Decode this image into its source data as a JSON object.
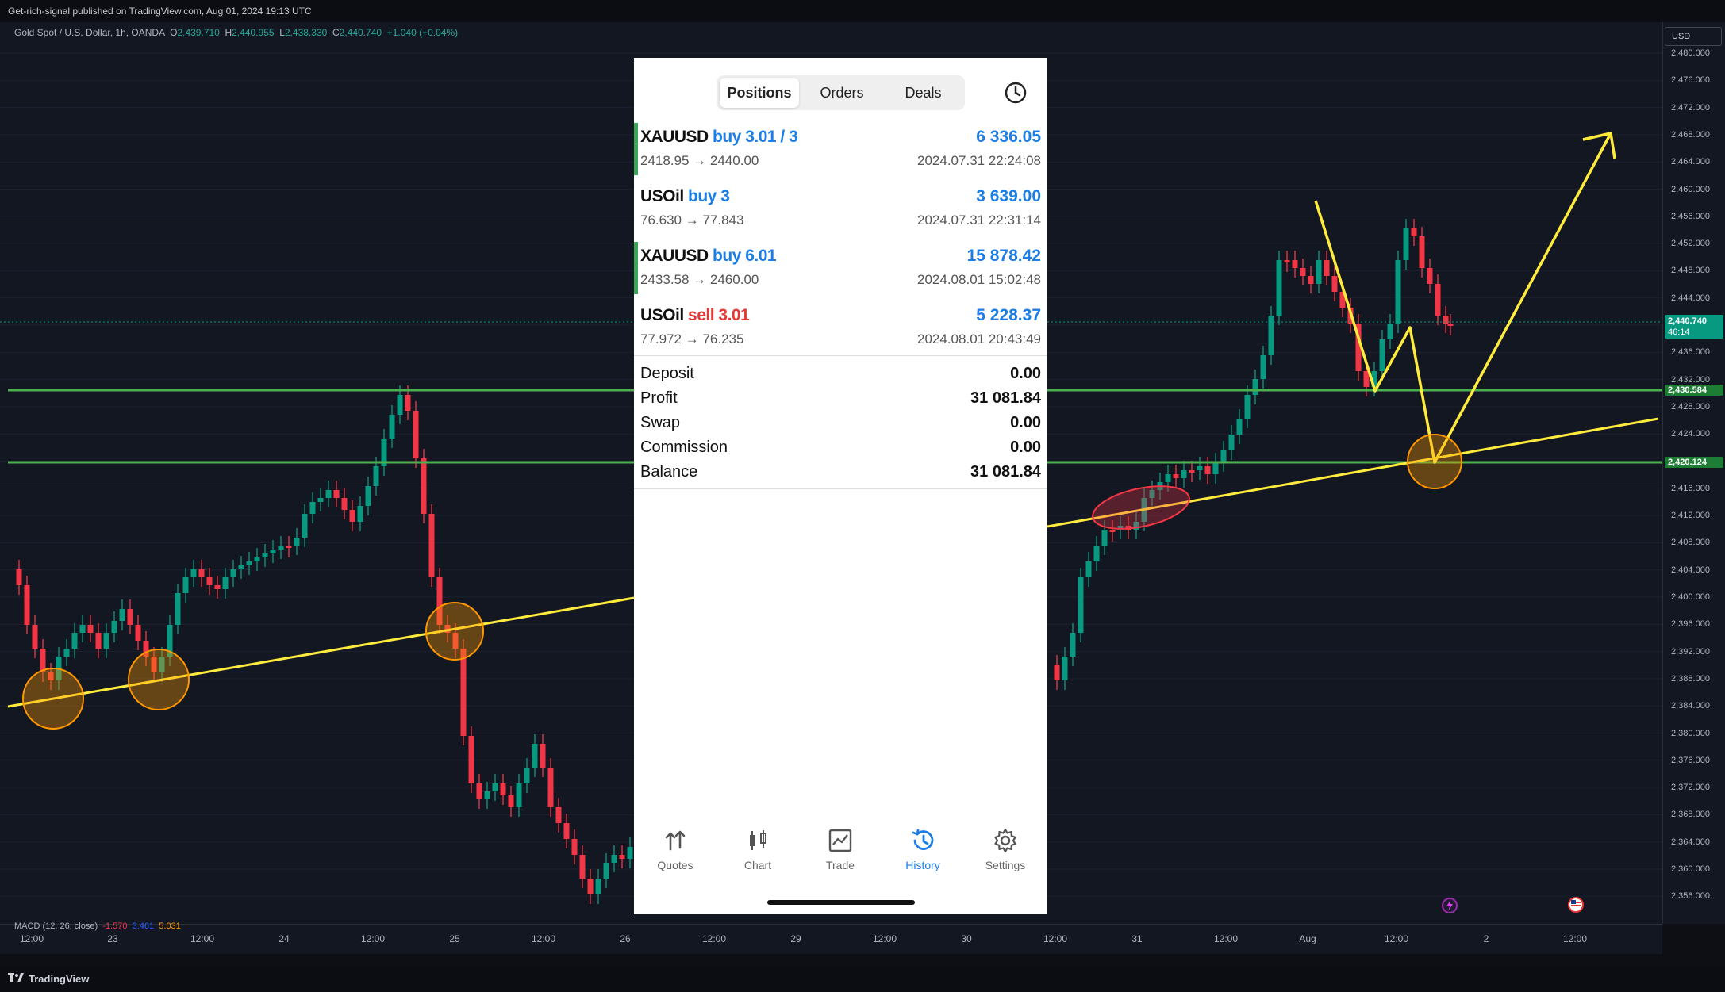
{
  "header": {
    "publish_text": "Get-rich-signal published on TradingView.com, Aug 01, 2024 19:13 UTC"
  },
  "legend": {
    "symbol": "Gold Spot / U.S. Dollar, 1h, OANDA",
    "o_label": "O",
    "o": "2,439.710",
    "h_label": "H",
    "h": "2,440.955",
    "l_label": "L",
    "l": "2,438.330",
    "c_label": "C",
    "c": "2,440.740",
    "change": "+1.040 (+0.04%)"
  },
  "price_axis": {
    "currency": "USD",
    "ticks": [
      "2,480.000",
      "2,476.000",
      "2,472.000",
      "2,468.000",
      "2,464.000",
      "2,460.000",
      "2,456.000",
      "2,452.000",
      "2,448.000",
      "2,444.000",
      "2,440.000",
      "2,436.000",
      "2,432.000",
      "2,428.000",
      "2,424.000",
      "2,420.000",
      "2,416.000",
      "2,412.000",
      "2,408.000",
      "2,404.000",
      "2,400.000",
      "2,396.000",
      "2,392.000",
      "2,388.000",
      "2,384.000",
      "2,380.000",
      "2,376.000",
      "2,372.000",
      "2,368.000",
      "2,364.000",
      "2,360.000",
      "2,356.000"
    ],
    "current_price": "2,440.740",
    "countdown": "46:14",
    "level_1": "2,430.584",
    "level_2": "2,420.124"
  },
  "time_axis": {
    "labels": [
      "12:00",
      "23",
      "12:00",
      "24",
      "12:00",
      "25",
      "12:00",
      "26",
      "12:00",
      "29",
      "12:00",
      "30",
      "12:00",
      "31",
      "12:00",
      "Aug",
      "12:00",
      "2",
      "12:00"
    ]
  },
  "macd": {
    "label": "MACD (12, 26, close)",
    "v1": "-1.570",
    "v2": "3.461",
    "v3": "5.031"
  },
  "footer": {
    "brand": "TradingView"
  },
  "panel": {
    "tabs": [
      "Positions",
      "Orders",
      "Deals"
    ],
    "active_tab": "Positions",
    "positions": [
      {
        "symbol": "XAUUSD",
        "action": "buy 3.01 / 3",
        "type": "buy",
        "profit": "6 336.05",
        "prices": "2418.95 → 2440.00",
        "date": "2024.07.31 22:24:08",
        "bar": true
      },
      {
        "symbol": "USOil",
        "action": "buy 3",
        "type": "buy",
        "profit": "3 639.00",
        "prices": "76.630 → 77.843",
        "date": "2024.07.31 22:31:14",
        "bar": false
      },
      {
        "symbol": "XAUUSD",
        "action": "buy 6.01",
        "type": "buy",
        "profit": "15 878.42",
        "prices": "2433.58 → 2460.00",
        "date": "2024.08.01 15:02:48",
        "bar": true
      },
      {
        "symbol": "USOil",
        "action": "sell 3.01",
        "type": "sell",
        "profit": "5 228.37",
        "prices": "77.972 → 76.235",
        "date": "2024.08.01 20:43:49",
        "bar": false
      }
    ],
    "summary": [
      {
        "label": "Deposit",
        "value": "0.00"
      },
      {
        "label": "Profit",
        "value": "31 081.84"
      },
      {
        "label": "Swap",
        "value": "0.00"
      },
      {
        "label": "Commission",
        "value": "0.00"
      },
      {
        "label": "Balance",
        "value": "31 081.84"
      }
    ],
    "nav": [
      {
        "label": "Quotes",
        "icon": "quotes-arrows-icon"
      },
      {
        "label": "Chart",
        "icon": "candlestick-icon"
      },
      {
        "label": "Trade",
        "icon": "trade-chart-icon"
      },
      {
        "label": "History",
        "icon": "history-clock-icon"
      },
      {
        "label": "Settings",
        "icon": "gear-icon"
      }
    ],
    "active_nav": "History"
  },
  "colors": {
    "up": "#089981",
    "down": "#f23645",
    "level_line": "#4caf50",
    "trend_line": "#ffeb3b",
    "circle": "#ff9800",
    "accent_blue": "#1a7ee6"
  }
}
